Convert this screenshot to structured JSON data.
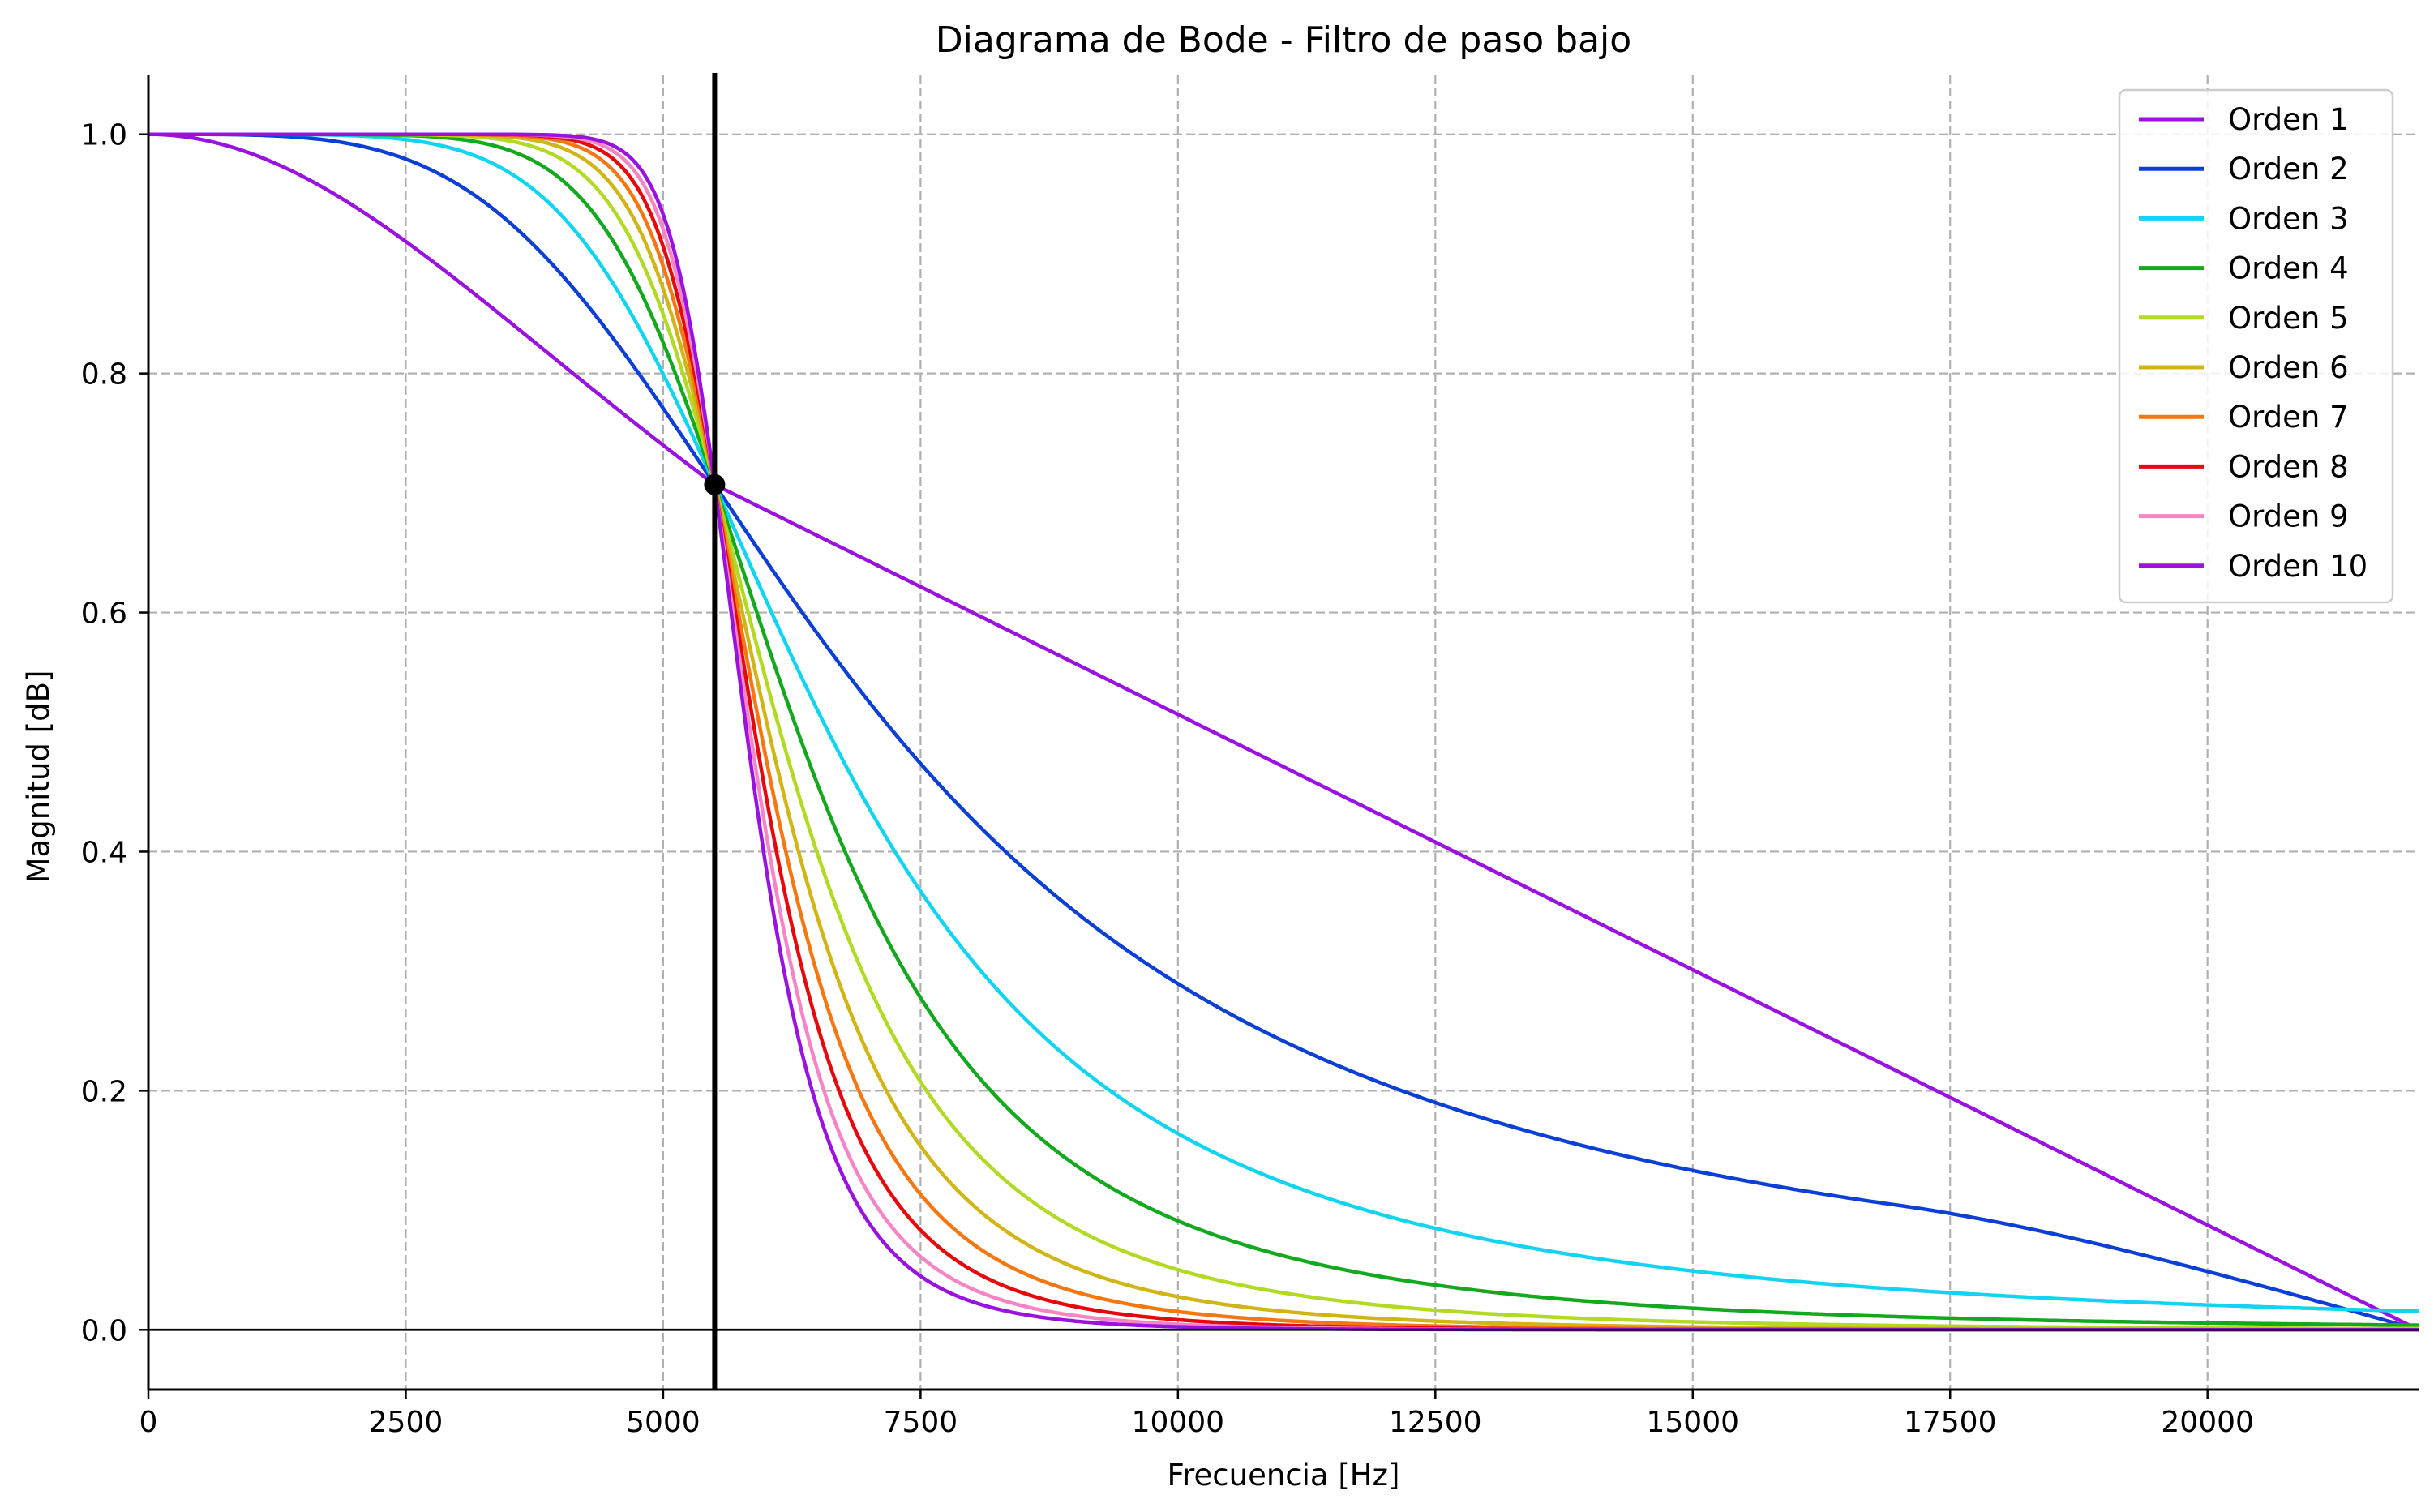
{
  "chart_data": {
    "type": "line",
    "title": "Diagrama de Bode - Filtro de paso bajo",
    "xlabel": "Frecuencia [Hz]",
    "ylabel": "Magnitud [dB]",
    "xlim": [
      0,
      22050
    ],
    "ylim": [
      -0.05,
      1.05
    ],
    "x_ticks": [
      0,
      2500,
      5000,
      7500,
      10000,
      12500,
      15000,
      17500,
      20000
    ],
    "y_ticks": [
      "0.0",
      "0.2",
      "0.4",
      "0.6",
      "0.8",
      "1.0"
    ],
    "grid": true,
    "grid_style": "dashed",
    "legend_position": "top-right",
    "cutoff_frequency": 5500,
    "cutoff_magnitude": 0.707,
    "nyquist_frequency": 22050,
    "series": [
      {
        "name": "Orden 1",
        "order": 1,
        "color": "#9A12E0"
      },
      {
        "name": "Orden 2",
        "order": 2,
        "color": "#0B3FD6"
      },
      {
        "name": "Orden 3",
        "order": 3,
        "color": "#13D4F0"
      },
      {
        "name": "Orden 4",
        "order": 4,
        "color": "#14A81F"
      },
      {
        "name": "Orden 5",
        "order": 5,
        "color": "#B2DA25"
      },
      {
        "name": "Orden 6",
        "order": 6,
        "color": "#D1B516"
      },
      {
        "name": "Orden 7",
        "order": 7,
        "color": "#F57712"
      },
      {
        "name": "Orden 8",
        "order": 8,
        "color": "#E5080C"
      },
      {
        "name": "Orden 9",
        "order": 9,
        "color": "#F685C6"
      },
      {
        "name": "Orden 10",
        "order": 10,
        "color": "#9A12E0"
      }
    ]
  }
}
